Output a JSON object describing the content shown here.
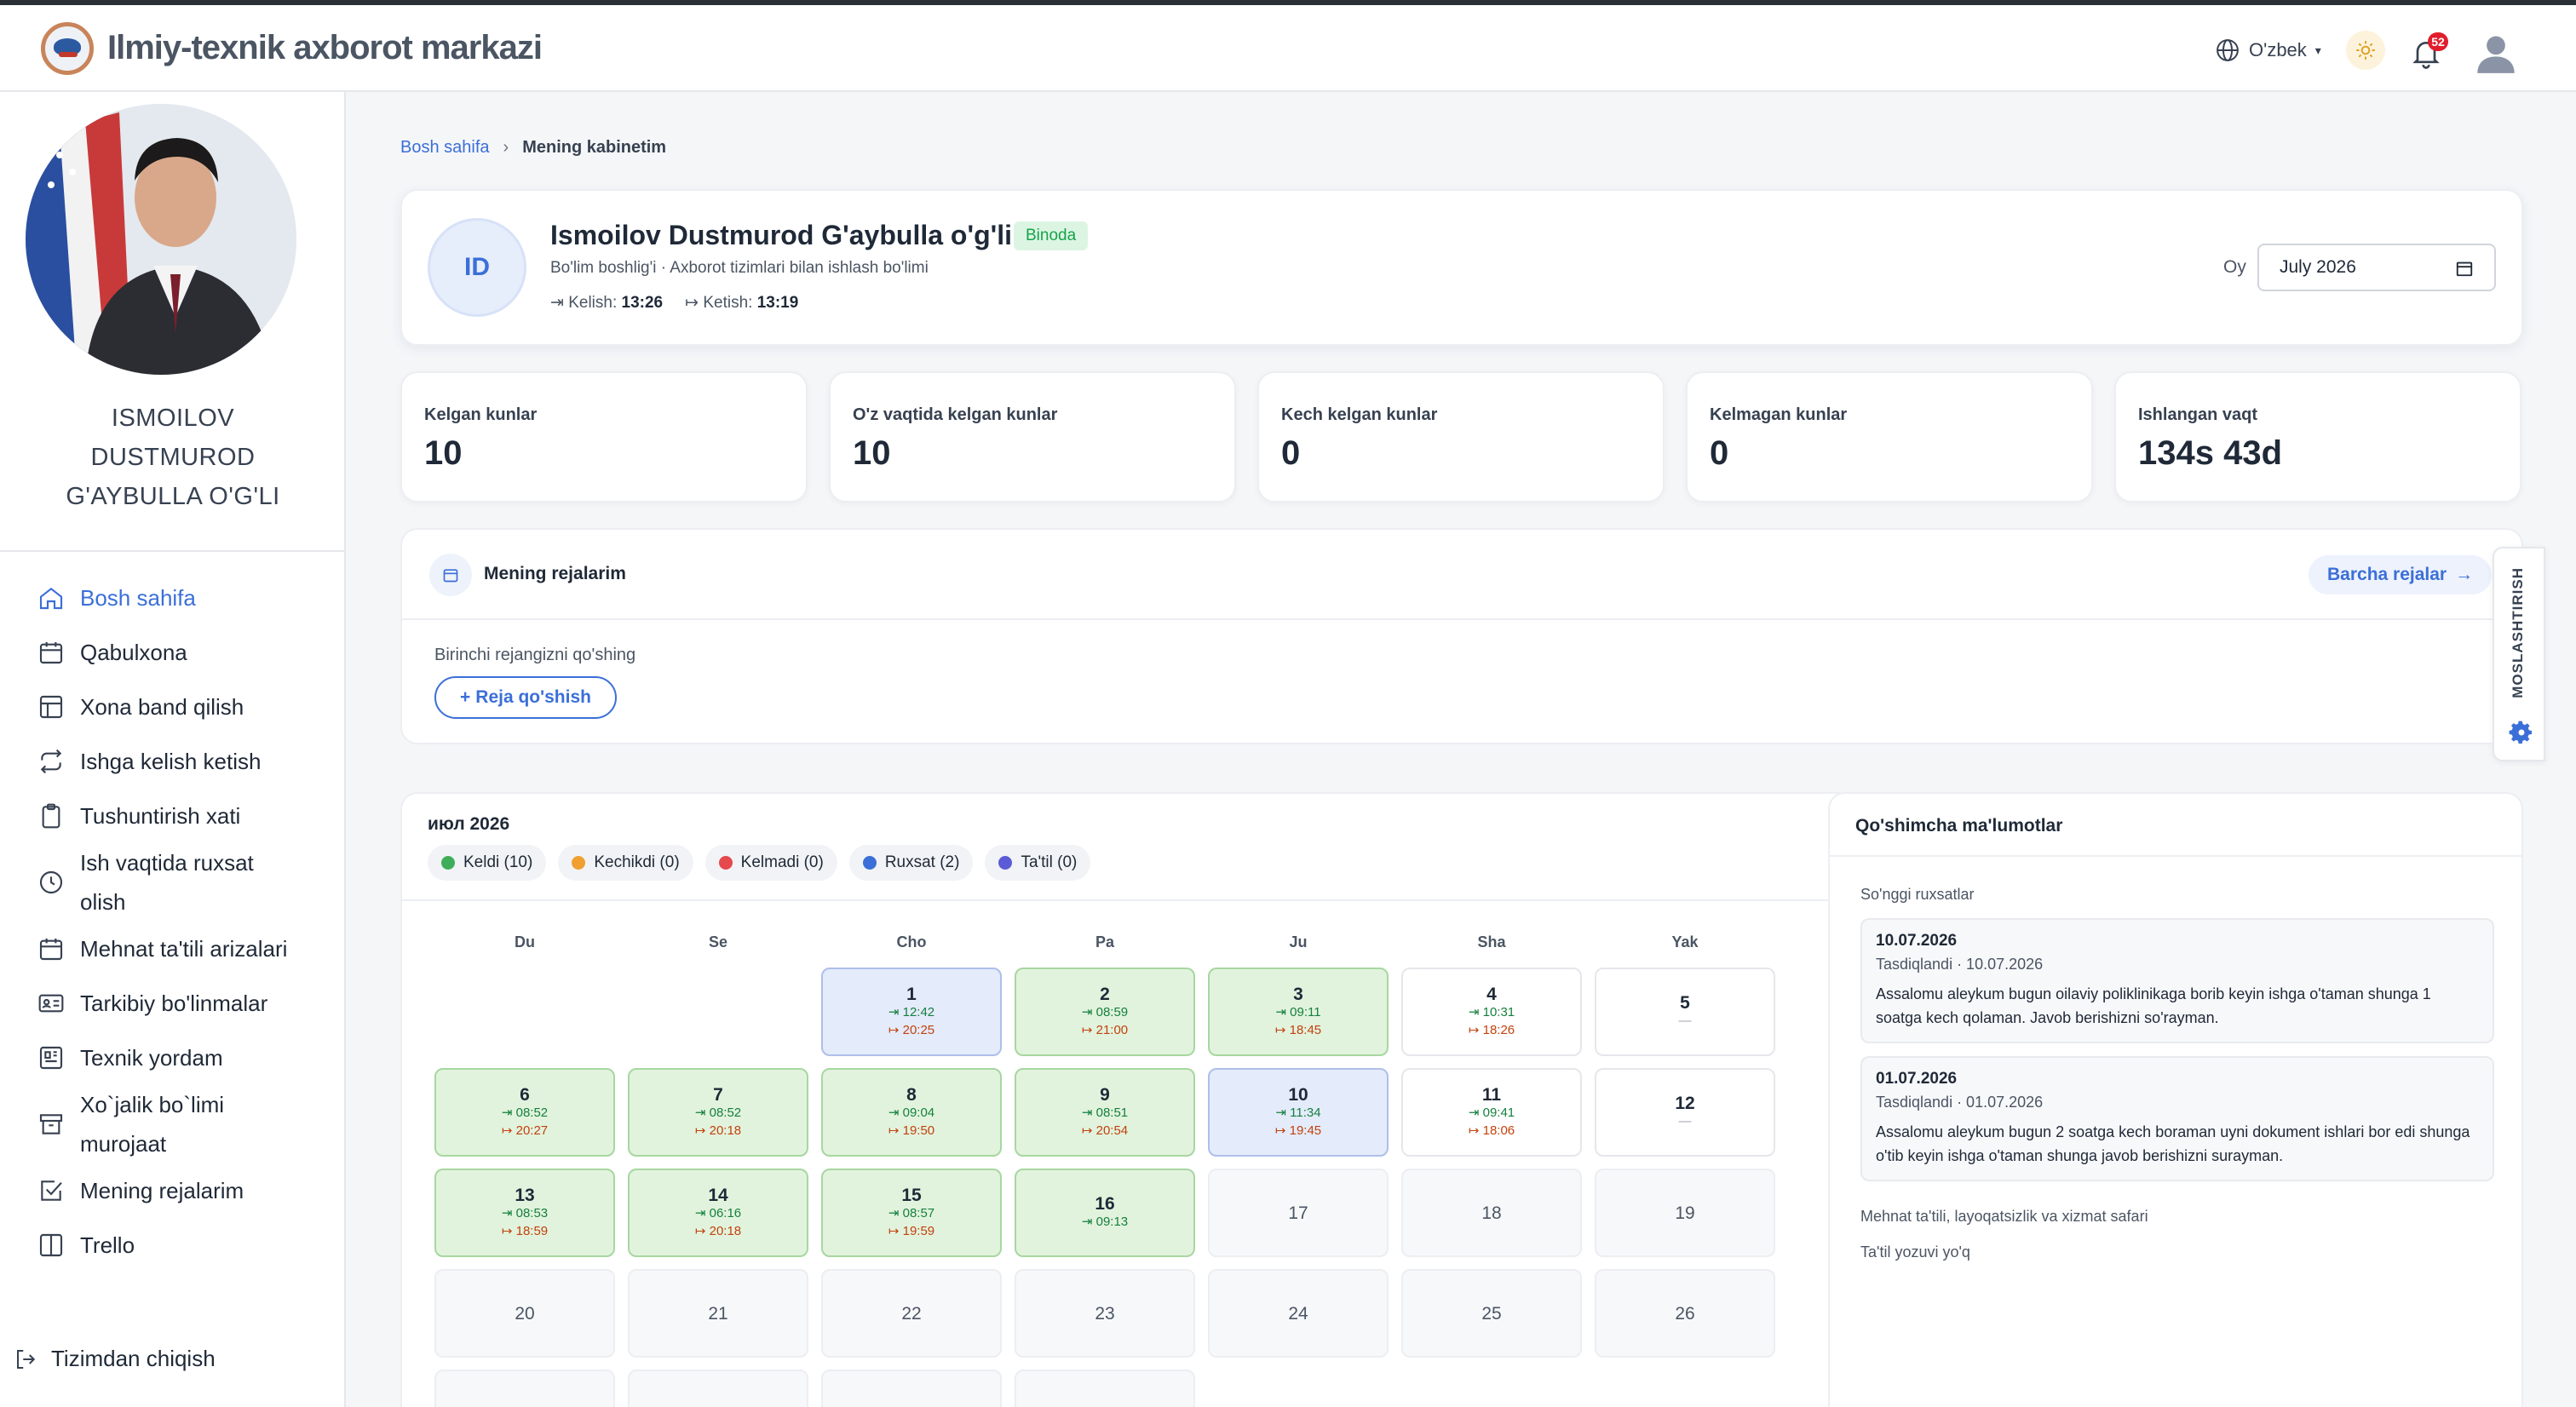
{
  "header": {
    "title": "Ilmiy-texnik axborot markazi",
    "language": "O'zbek",
    "notification_count": "52"
  },
  "sidebar": {
    "name_lines": [
      "ISMOILOV",
      "DUSTMUROD",
      "G'AYBULLA O'G'LI"
    ],
    "items": [
      {
        "label": "Bosh sahifa",
        "icon": "home-icon"
      },
      {
        "label": "Qabulxona",
        "icon": "calendar-icon"
      },
      {
        "label": "Xona band qilish",
        "icon": "layout-icon"
      },
      {
        "label": "Ishga kelish ketish",
        "icon": "repeat-icon"
      },
      {
        "label": "Tushuntirish xati",
        "icon": "clipboard-icon"
      },
      {
        "label": "Ish vaqtida ruxsat olish",
        "icon": "clock-icon"
      },
      {
        "label": "Mehnat ta'tili arizalari",
        "icon": "calendar-icon"
      },
      {
        "label": "Tarkibiy bo'linmalar",
        "icon": "id-card-icon"
      },
      {
        "label": "Texnik yordam",
        "icon": "panel-icon"
      },
      {
        "label": "Xo`jalik bo`limi murojaat",
        "icon": "archive-icon"
      },
      {
        "label": "Mening rejalarim",
        "icon": "check-square-icon"
      },
      {
        "label": "Trello",
        "icon": "columns-icon"
      }
    ],
    "logout": "Tizimdan chiqish"
  },
  "breadcrumb": {
    "home": "Bosh sahifa",
    "current": "Mening kabinetim"
  },
  "profile": {
    "initials": "ID",
    "full_name": "Ismoilov Dustmurod G'aybulla o'g'li",
    "status": "Binoda",
    "role": "Bo'lim boshlig'i · Axborot tizimlari bilan ishlash bo'limi",
    "arrival_label": "Kelish:",
    "arrival_time": "13:26",
    "departure_label": "Ketish:",
    "departure_time": "13:19",
    "month_label": "Oy",
    "month_value": "July 2026"
  },
  "stats": [
    {
      "label": "Kelgan kunlar",
      "value": "10"
    },
    {
      "label": "O'z vaqtida kelgan kunlar",
      "value": "10"
    },
    {
      "label": "Kech kelgan kunlar",
      "value": "0"
    },
    {
      "label": "Kelmagan kunlar",
      "value": "0"
    },
    {
      "label": "Ishlangan vaqt",
      "value": "134s 43d"
    }
  ],
  "plans": {
    "title": "Mening rejalarim",
    "all_button": "Barcha rejalar",
    "empty_text": "Birinchi rejangizni qo'shing",
    "add_button": "Reja qo'shish"
  },
  "side_tab": {
    "label": "MOSLASHTIRISH"
  },
  "calendar": {
    "month_title": "июл 2026",
    "legend": [
      {
        "label": "Keldi (10)",
        "color": "#3fae5a"
      },
      {
        "label": "Kechikdi (0)",
        "color": "#f0a030"
      },
      {
        "label": "Kelmadi (0)",
        "color": "#e5484d"
      },
      {
        "label": "Ruxsat (2)",
        "color": "#3b6fd8"
      },
      {
        "label": "Ta'til (0)",
        "color": "#5b5bd6"
      }
    ],
    "weekdays": [
      "Du",
      "Se",
      "Cho",
      "Pa",
      "Ju",
      "Sha",
      "Yak"
    ],
    "days": [
      {
        "d": "1",
        "in": "12:42",
        "out": "20:25",
        "type": "ruxsat"
      },
      {
        "d": "2",
        "in": "08:59",
        "out": "21:00",
        "type": "keldi"
      },
      {
        "d": "3",
        "in": "09:11",
        "out": "18:45",
        "type": "keldi"
      },
      {
        "d": "4",
        "in": "10:31",
        "out": "18:26",
        "type": "plain"
      },
      {
        "d": "5",
        "in": "",
        "out": "",
        "type": "weekend"
      },
      {
        "d": "6",
        "in": "08:52",
        "out": "20:27",
        "type": "keldi"
      },
      {
        "d": "7",
        "in": "08:52",
        "out": "20:18",
        "type": "keldi"
      },
      {
        "d": "8",
        "in": "09:04",
        "out": "19:50",
        "type": "keldi"
      },
      {
        "d": "9",
        "in": "08:51",
        "out": "20:54",
        "type": "keldi"
      },
      {
        "d": "10",
        "in": "11:34",
        "out": "19:45",
        "type": "ruxsat"
      },
      {
        "d": "11",
        "in": "09:41",
        "out": "18:06",
        "type": "plain"
      },
      {
        "d": "12",
        "in": "",
        "out": "",
        "type": "weekend"
      },
      {
        "d": "13",
        "in": "08:53",
        "out": "18:59",
        "type": "keldi"
      },
      {
        "d": "14",
        "in": "06:16",
        "out": "20:18",
        "type": "keldi"
      },
      {
        "d": "15",
        "in": "08:57",
        "out": "19:59",
        "type": "keldi"
      },
      {
        "d": "16",
        "in": "09:13",
        "out": "",
        "type": "keldi"
      },
      {
        "d": "17",
        "in": "",
        "out": "",
        "type": "future"
      },
      {
        "d": "18",
        "in": "",
        "out": "",
        "type": "future"
      },
      {
        "d": "19",
        "in": "",
        "out": "",
        "type": "future"
      },
      {
        "d": "20",
        "in": "",
        "out": "",
        "type": "future"
      },
      {
        "d": "21",
        "in": "",
        "out": "",
        "type": "future"
      },
      {
        "d": "22",
        "in": "",
        "out": "",
        "type": "future"
      },
      {
        "d": "23",
        "in": "",
        "out": "",
        "type": "future"
      },
      {
        "d": "24",
        "in": "",
        "out": "",
        "type": "future"
      },
      {
        "d": "25",
        "in": "",
        "out": "",
        "type": "future"
      },
      {
        "d": "26",
        "in": "",
        "out": "",
        "type": "future"
      }
    ],
    "empty_mark": "—"
  },
  "info": {
    "title": "Qo'shimcha ma'lumotlar",
    "recent_label": "So'nggi ruxsatlar",
    "permissions": [
      {
        "date": "10.07.2026",
        "status": "Tasdiqlandi · 10.07.2026",
        "text": "Assalomu aleykum bugun oilaviy poliklinikaga borib keyin ishga o'taman shunga 1 soatga kech qolaman. Javob berishizni so'rayman."
      },
      {
        "date": "01.07.2026",
        "status": "Tasdiqlandi · 01.07.2026",
        "text": "Assalomu aleykum bugun 2 soatga kech boraman uyni dokument ishlari bor edi shunga o'tib keyin ishga o'taman shunga javob berishizni surayman."
      }
    ],
    "leave_label": "Mehnat ta'tili, layoqatsizlik va xizmat safari",
    "leave_empty": "Ta'til yozuvi yo'q"
  }
}
